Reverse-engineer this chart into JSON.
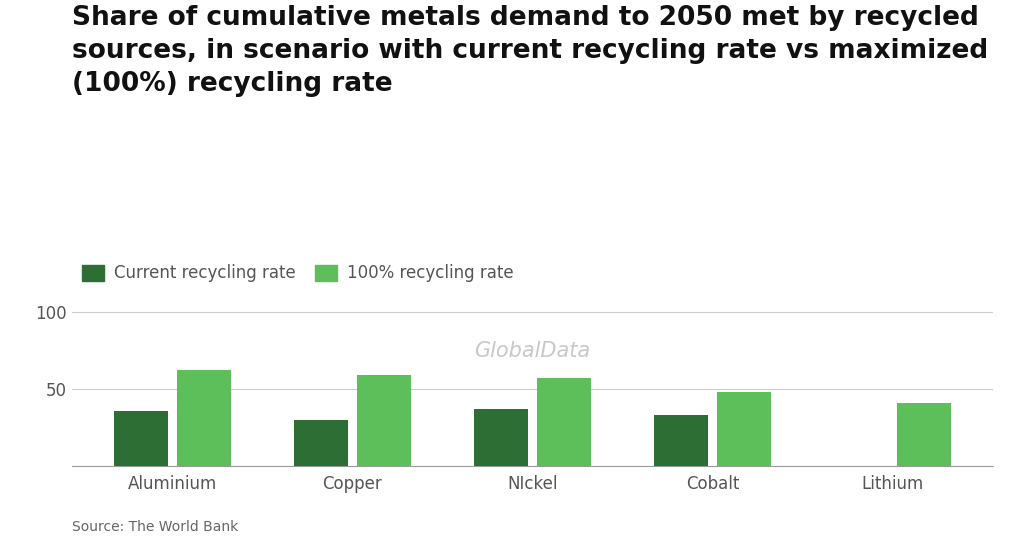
{
  "title": "Share of cumulative metals demand to 2050 met by recycled\nsources, in scenario with current recycling rate vs maximized\n(100%) recycling rate",
  "categories": [
    "Aluminium",
    "Copper",
    "NIckel",
    "Cobalt",
    "Lithium"
  ],
  "current_recycling": [
    36,
    30,
    37,
    33,
    0
  ],
  "max_recycling": [
    62,
    59,
    57,
    48,
    41
  ],
  "color_current": "#2d6e35",
  "color_max": "#5dbf5a",
  "legend_labels": [
    "Current recycling rate",
    "100% recycling rate"
  ],
  "yticks": [
    50,
    100
  ],
  "ylim": [
    0,
    115
  ],
  "source": "Source: The World Bank",
  "watermark": "GlobalData",
  "background_color": "#ffffff",
  "title_fontsize": 19,
  "axis_fontsize": 12,
  "legend_fontsize": 12,
  "source_fontsize": 10
}
